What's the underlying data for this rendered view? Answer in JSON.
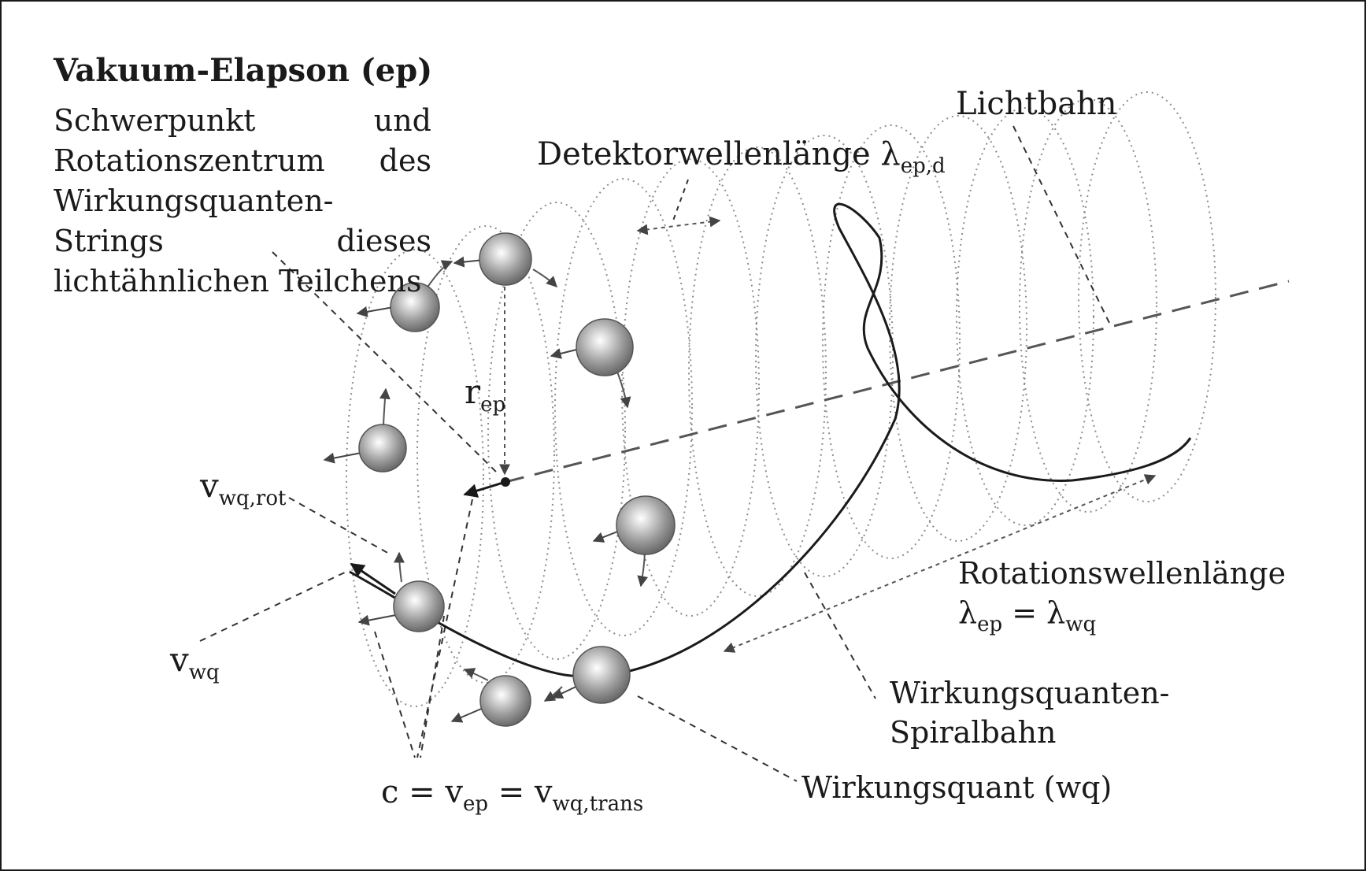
{
  "title": "Vakuum-Elapson (ep)",
  "description": "Schwerpunkt und Rotationszentrum des Wirkungsquanten-Strings dieses lichtähnlichen Teilchens",
  "labels": {
    "lichtbahn": "Lichtbahn",
    "detektor_text": "Detektorwellenlänge λ",
    "detektor_sub": "ep,d",
    "r_main": "r",
    "r_sub": "ep",
    "v_rot_main": "v",
    "v_rot_sub": "wq,rot",
    "v_wq_main": "v",
    "v_wq_sub": "wq",
    "rotwl_text": "Rotationswellenlänge",
    "rotwl_eq_a": "λ",
    "rotwl_eq_a_sub": "ep",
    "rotwl_eq_mid": " = λ",
    "rotwl_eq_b_sub": "wq",
    "spiral_text": "Wirkungsquanten-Spiralbahn",
    "wq_text": "Wirkungsquant (wq)",
    "c_a": "c = v",
    "c_a_sub": "ep",
    "c_mid": " = v",
    "c_b_sub": "wq,trans"
  }
}
